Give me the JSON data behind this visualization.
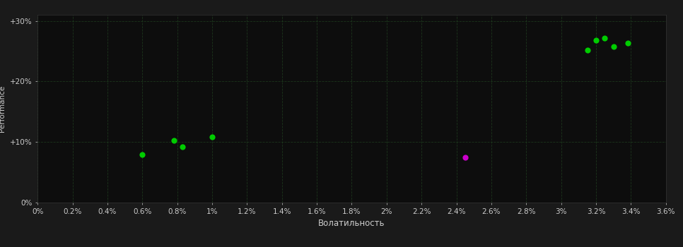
{
  "background_color": "#1a1a1a",
  "plot_bg_color": "#0d0d0d",
  "text_color": "#cccccc",
  "xlabel": "Волатильность",
  "ylabel": "Performance",
  "xlim": [
    0.0,
    0.036
  ],
  "ylim": [
    0.0,
    0.31
  ],
  "xtick_vals": [
    0.0,
    0.002,
    0.004,
    0.006,
    0.008,
    0.01,
    0.012,
    0.014,
    0.016,
    0.018,
    0.02,
    0.022,
    0.024,
    0.026,
    0.028,
    0.03,
    0.032,
    0.034,
    0.036
  ],
  "ytick_vals": [
    0.0,
    0.1,
    0.2,
    0.3
  ],
  "ytick_labels": [
    "0%",
    "+10%",
    "+20%",
    "+30%"
  ],
  "green_points_xy": [
    [
      0.006,
      0.079
    ],
    [
      0.0078,
      0.102
    ],
    [
      0.0083,
      0.092
    ],
    [
      0.01,
      0.108
    ],
    [
      0.0315,
      0.252
    ],
    [
      0.032,
      0.268
    ],
    [
      0.0325,
      0.272
    ],
    [
      0.033,
      0.258
    ],
    [
      0.0338,
      0.263
    ]
  ],
  "magenta_points_xy": [
    [
      0.0245,
      0.075
    ]
  ],
  "point_size": 35,
  "green_color": "#00cc00",
  "magenta_color": "#cc00cc",
  "grid_color": "#1e3a1e",
  "grid_alpha": 0.9,
  "spine_color": "#333333"
}
